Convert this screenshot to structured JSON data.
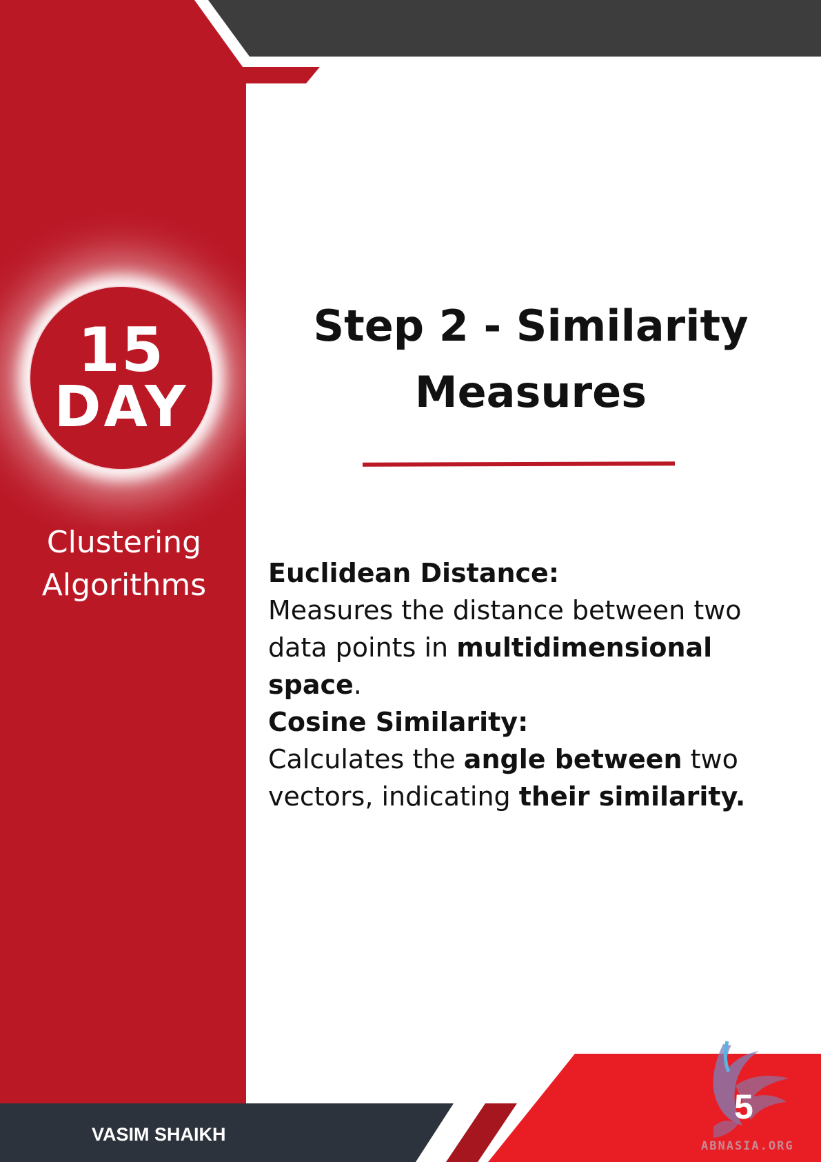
{
  "sidebar": {
    "badge_number": "15",
    "badge_unit": "DAY",
    "subject_line1": "Clustering",
    "subject_line2": "Algorithms"
  },
  "main": {
    "title_line1": "Step 2 - Similarity",
    "title_line2": "Measures",
    "sections": [
      {
        "heading": "Euclidean Distance:",
        "text_1": "Measures the distance between two data points in ",
        "bold_1": "multidimensional space",
        "text_2": "."
      },
      {
        "heading": "Cosine Similarity:",
        "text_1": "Calculates the ",
        "bold_1": "angle between",
        "text_2": " two vectors, indicating ",
        "bold_2": "their similarity."
      }
    ]
  },
  "footer": {
    "author": "VASIM SHAIKH",
    "page_number": "5",
    "watermark_text": "ABNASIA.ORG"
  },
  "colors": {
    "primary_red": "#bb1826",
    "bright_red": "#e91e25",
    "dark_gray": "#3d3d3d",
    "navy": "#2d333c"
  }
}
